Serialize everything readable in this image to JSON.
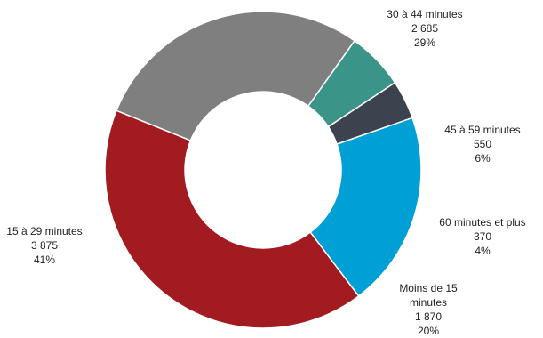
{
  "chart_data": {
    "type": "pie",
    "style": "donut",
    "slices": [
      {
        "label": "30 à 44 minutes",
        "value": 2685,
        "value_text": "2 685",
        "percent_text": "29%",
        "color": "#7f7f7f"
      },
      {
        "label": "45 à 59 minutes",
        "value": 550,
        "value_text": "550",
        "percent_text": "6%",
        "color": "#3a9487"
      },
      {
        "label": "60 minutes et plus",
        "value": 370,
        "value_text": "370",
        "percent_text": "4%",
        "color": "#3c434f"
      },
      {
        "label": "Moins de 15 minutes",
        "value": 1870,
        "value_text": "1 870",
        "percent_text": "20%",
        "color": "#00a0d6"
      },
      {
        "label": "15 à 29 minutes",
        "value": 3875,
        "value_text": "3 875",
        "percent_text": "41%",
        "color": "#a21b20"
      }
    ]
  }
}
